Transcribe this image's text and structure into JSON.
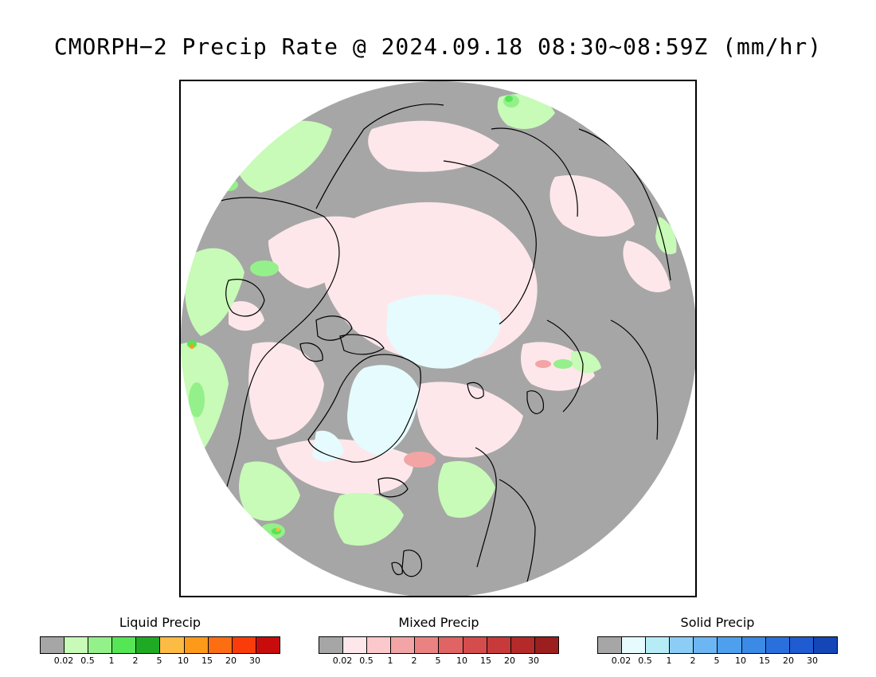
{
  "title": "CMORPH−2 Precip Rate @ 2024.09.18 08:30~08:59Z (mm/hr)",
  "legends": [
    {
      "title": "Liquid Precip",
      "colors": [
        "#a6a6a6",
        "#c7fbb7",
        "#94f08a",
        "#55e656",
        "#1faa23",
        "#fcbb42",
        "#fd9a1a",
        "#fd6e12",
        "#fa3c0b",
        "#c80b0b"
      ],
      "ticks": [
        "0.02",
        "0.5",
        "1",
        "2",
        "5",
        "10",
        "15",
        "20",
        "30"
      ]
    },
    {
      "title": "Mixed Precip",
      "colors": [
        "#a6a6a6",
        "#fde7ea",
        "#fbc9cb",
        "#f3a5a6",
        "#ea8282",
        "#e06464",
        "#d44c4c",
        "#c83a3a",
        "#b42a2a",
        "#9c1f1f"
      ],
      "ticks": [
        "0.02",
        "0.5",
        "1",
        "2",
        "5",
        "10",
        "15",
        "20",
        "30"
      ]
    },
    {
      "title": "Solid Precip",
      "colors": [
        "#a6a6a6",
        "#e6fbfd",
        "#b6ecf6",
        "#8ccdf6",
        "#6cb6f3",
        "#4ea0ee",
        "#3a8ae6",
        "#2a70dc",
        "#1f5cd2",
        "#1446b8"
      ],
      "ticks": [
        "0.02",
        "0.5",
        "1",
        "2",
        "5",
        "10",
        "15",
        "20",
        "30"
      ]
    }
  ],
  "map": {
    "projection": "north-polar-stereographic",
    "background_color": "#a6a6a6",
    "coastline_color": "#000000"
  }
}
